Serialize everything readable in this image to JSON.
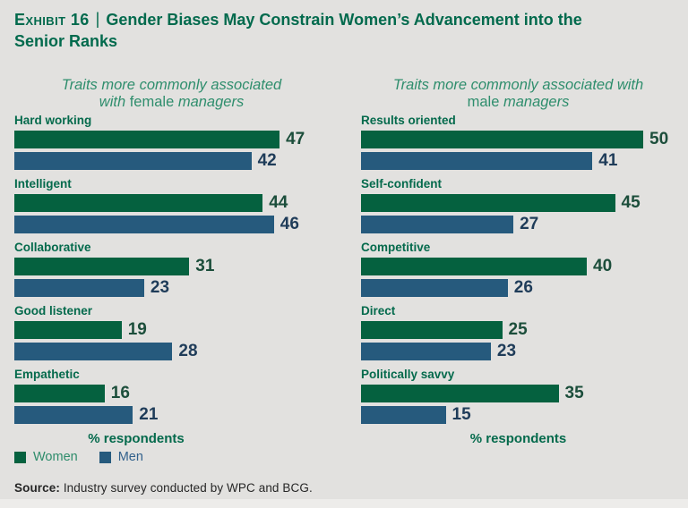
{
  "title": {
    "exhibit_label": "Exhibit 16",
    "separator": "|",
    "line1": "Gender Biases May Constrain Women’s Advancement into the",
    "line2": "Senior Ranks"
  },
  "panels": [
    {
      "subtitle": {
        "line1": "Traits more commonly associated",
        "line2_pre": "with ",
        "line2_em": "female",
        "line2_post": " managers"
      },
      "pct_label": "% respondents",
      "rows": [
        {
          "label": "Hard working",
          "women": 47,
          "men": 42
        },
        {
          "label": "Intelligent",
          "women": 44,
          "men": 46
        },
        {
          "label": "Collaborative",
          "women": 31,
          "men": 23
        },
        {
          "label": "Good listener",
          "women": 19,
          "men": 28
        },
        {
          "label": "Empathetic",
          "women": 16,
          "men": 21
        }
      ]
    },
    {
      "subtitle": {
        "line1": "Traits more commonly associated with",
        "line2_pre": "",
        "line2_em": "male",
        "line2_post": " managers"
      },
      "pct_label": "% respondents",
      "rows": [
        {
          "label": "Results oriented",
          "women": 50,
          "men": 41
        },
        {
          "label": "Self-confident",
          "women": 45,
          "men": 27
        },
        {
          "label": "Competitive",
          "women": 40,
          "men": 26
        },
        {
          "label": "Direct",
          "women": 25,
          "men": 23
        },
        {
          "label": "Politically savvy",
          "women": 35,
          "men": 15
        }
      ]
    }
  ],
  "legend": {
    "items": [
      {
        "label": "Women"
      },
      {
        "label": "Men"
      }
    ]
  },
  "source": {
    "prefix": "Source:",
    "text": " Industry survey conducted by WPC and BCG."
  },
  "colors": {
    "background": "#e2e1df",
    "bottom_strip": "#edecea",
    "title_green": "#026a4d",
    "subtitle_green": "#2f8e6d",
    "category_green": "#046a4c",
    "women_bar": "#05613f",
    "men_bar": "#265a7d",
    "women_value": "#1c4e3b",
    "men_value": "#1f3c59",
    "legend_women_text": "#2e8c6b",
    "legend_men_text": "#32618c",
    "source_text": "#262626"
  },
  "chart_data": [
    {
      "type": "bar",
      "orientation": "horizontal",
      "title": "Traits more commonly associated with female managers",
      "categories": [
        "Hard working",
        "Intelligent",
        "Collaborative",
        "Good listener",
        "Empathetic"
      ],
      "series": [
        {
          "name": "Women",
          "values": [
            47,
            44,
            31,
            19,
            16
          ]
        },
        {
          "name": "Men",
          "values": [
            42,
            46,
            23,
            28,
            21
          ]
        }
      ],
      "xlabel": "% respondents",
      "ylabel": "",
      "xlim": [
        0,
        50
      ],
      "grid": false,
      "legend_position": "bottom-left",
      "value_labels": true
    },
    {
      "type": "bar",
      "orientation": "horizontal",
      "title": "Traits more commonly associated with male managers",
      "categories": [
        "Results oriented",
        "Self-confident",
        "Competitive",
        "Direct",
        "Politically savvy"
      ],
      "series": [
        {
          "name": "Women",
          "values": [
            50,
            45,
            40,
            25,
            35
          ]
        },
        {
          "name": "Men",
          "values": [
            41,
            27,
            26,
            23,
            15
          ]
        }
      ],
      "xlabel": "% respondents",
      "ylabel": "",
      "xlim": [
        0,
        50
      ],
      "grid": false,
      "legend_position": "bottom-left",
      "value_labels": true
    }
  ]
}
